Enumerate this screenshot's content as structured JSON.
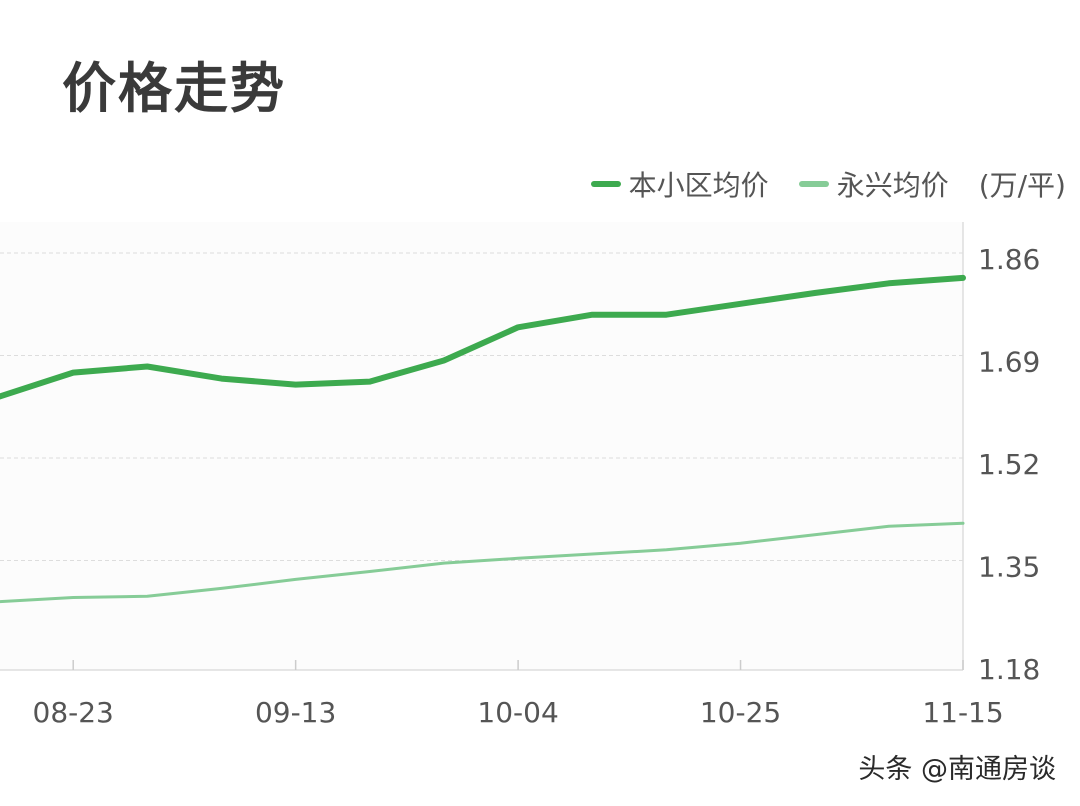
{
  "title": "价格走势",
  "legend": {
    "items": [
      {
        "label": "本小区均价",
        "color": "#3daa4f"
      },
      {
        "label": "永兴均价",
        "color": "#86cc97"
      }
    ],
    "unit": "(万/平)"
  },
  "watermark": "头条 @南通房谈",
  "chart_data": {
    "type": "line",
    "title": "价格走势",
    "ylabel": "(万/平)",
    "x_ticks": [
      "08-23",
      "09-13",
      "10-04",
      "10-25",
      "11-15"
    ],
    "y_ticks": [
      "1.86",
      "1.69",
      "1.52",
      "1.35",
      "1.18"
    ],
    "ylim": [
      1.18,
      1.86
    ],
    "x": [
      "08-16",
      "08-23",
      "08-30",
      "09-06",
      "09-13",
      "09-20",
      "09-27",
      "10-04",
      "10-11",
      "10-18",
      "10-25",
      "11-01",
      "11-08",
      "11-15"
    ],
    "grid": true,
    "legend_position": "top-right",
    "series": [
      {
        "name": "本小区均价",
        "color": "#3daa4f",
        "values": [
          1.63,
          1.67,
          1.68,
          1.66,
          1.65,
          1.655,
          1.69,
          1.745,
          1.766,
          1.766,
          1.784,
          1.802,
          1.818,
          1.827
        ]
      },
      {
        "name": "永兴均价",
        "color": "#86cc97",
        "values": [
          1.29,
          1.297,
          1.299,
          1.312,
          1.327,
          1.34,
          1.354,
          1.362,
          1.369,
          1.376,
          1.387,
          1.401,
          1.415,
          1.42
        ]
      }
    ]
  }
}
